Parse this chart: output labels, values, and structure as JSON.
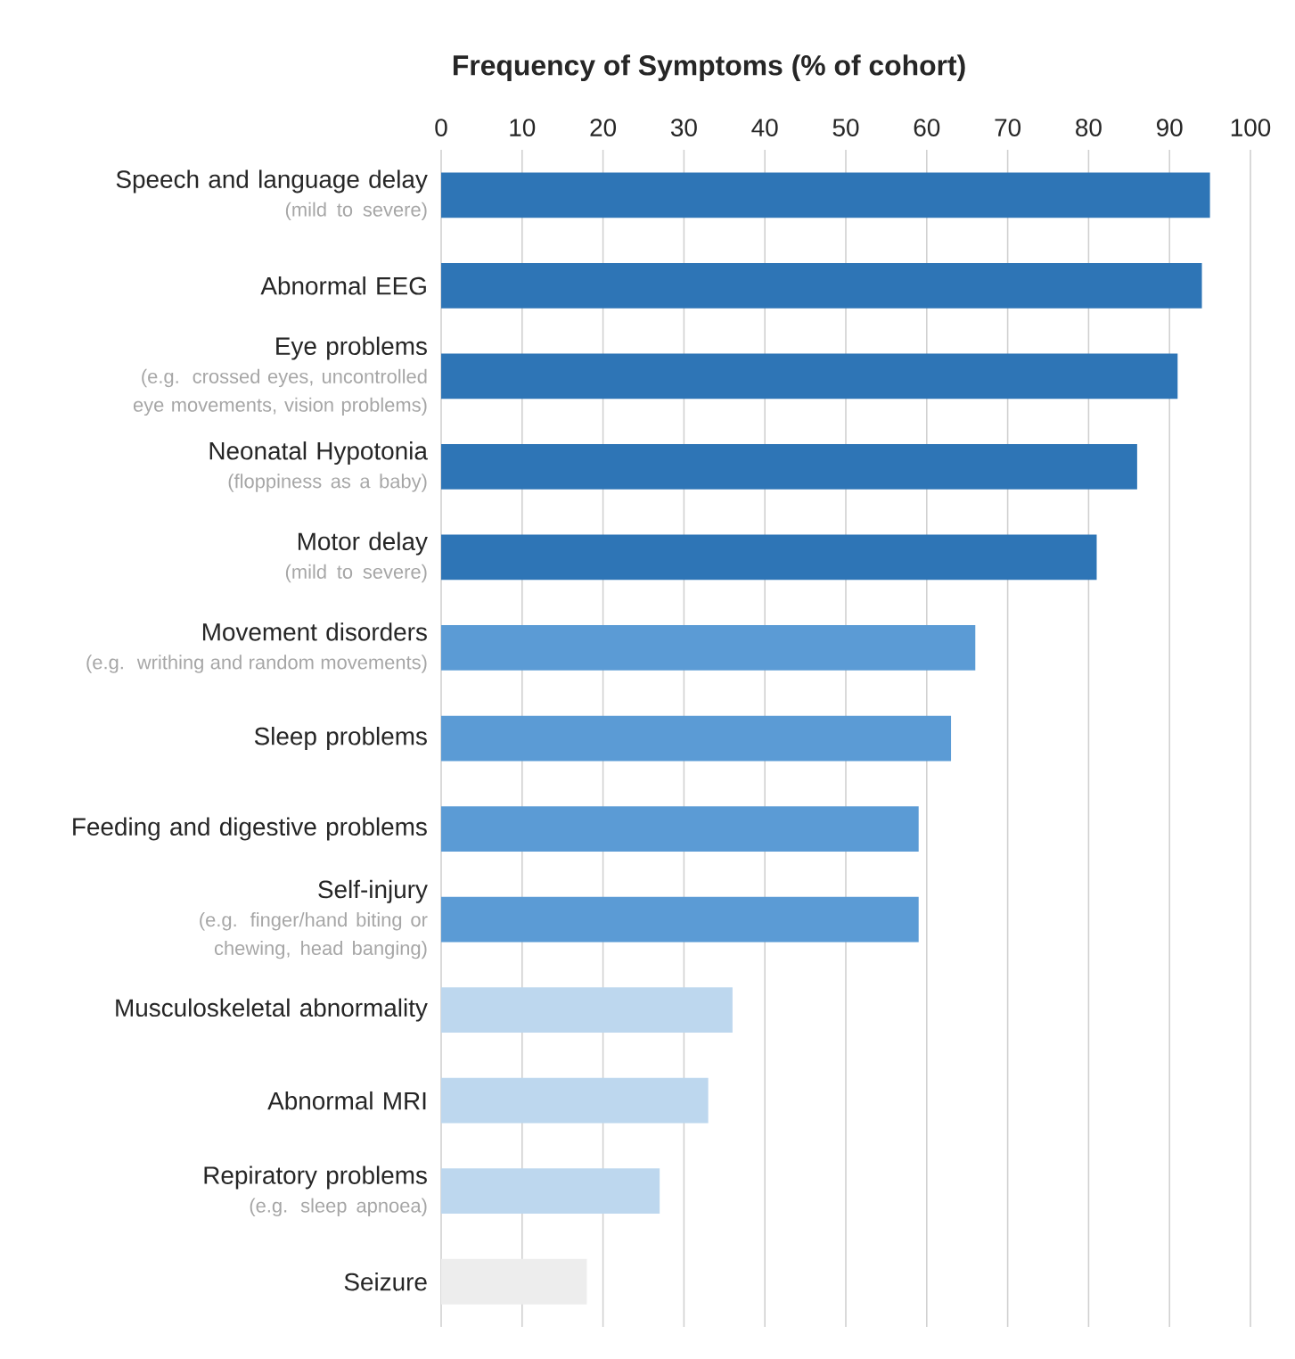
{
  "chart_data": {
    "type": "bar",
    "orientation": "horizontal",
    "title": "Frequency of Symptoms (% of cohort)",
    "categories": [
      "Speech and language delay",
      "Abnormal EEG",
      "Eye problems",
      "Neonatal Hypotonia",
      "Motor delay",
      "Movement disorders",
      "Sleep problems",
      "Feeding and digestive problems",
      "Self-injury",
      "Musculoskeletal abnormality",
      "Abnormal MRI",
      "Repiratory problems",
      "Seizure"
    ],
    "values": [
      95,
      94,
      91,
      86,
      81,
      66,
      63,
      59,
      59,
      36,
      33,
      27,
      18
    ],
    "colors": [
      "#2e75b6",
      "#2e75b6",
      "#2e75b6",
      "#2e75b6",
      "#2e75b6",
      "#5b9bd5",
      "#5b9bd5",
      "#5b9bd5",
      "#5b9bd5",
      "#bdd7ee",
      "#bdd7ee",
      "#bdd7ee",
      "#ededed"
    ],
    "xlim": [
      0,
      100
    ],
    "xticks": [
      0,
      10,
      20,
      30,
      40,
      50,
      60,
      70,
      80,
      90,
      100
    ],
    "grid": "x",
    "annotations": [
      "(mild to severe)",
      null,
      "(e.g. crossed eyes, uncontrolled eye movements, vision problems)",
      "(floppiness as a baby)",
      "(mild to severe)",
      "(e.g. writhing and random movements)",
      null,
      null,
      "(e.g. finger/hand biting or chewing, head banging)",
      null,
      null,
      "(e.g. sleep apnoea)",
      null
    ]
  }
}
